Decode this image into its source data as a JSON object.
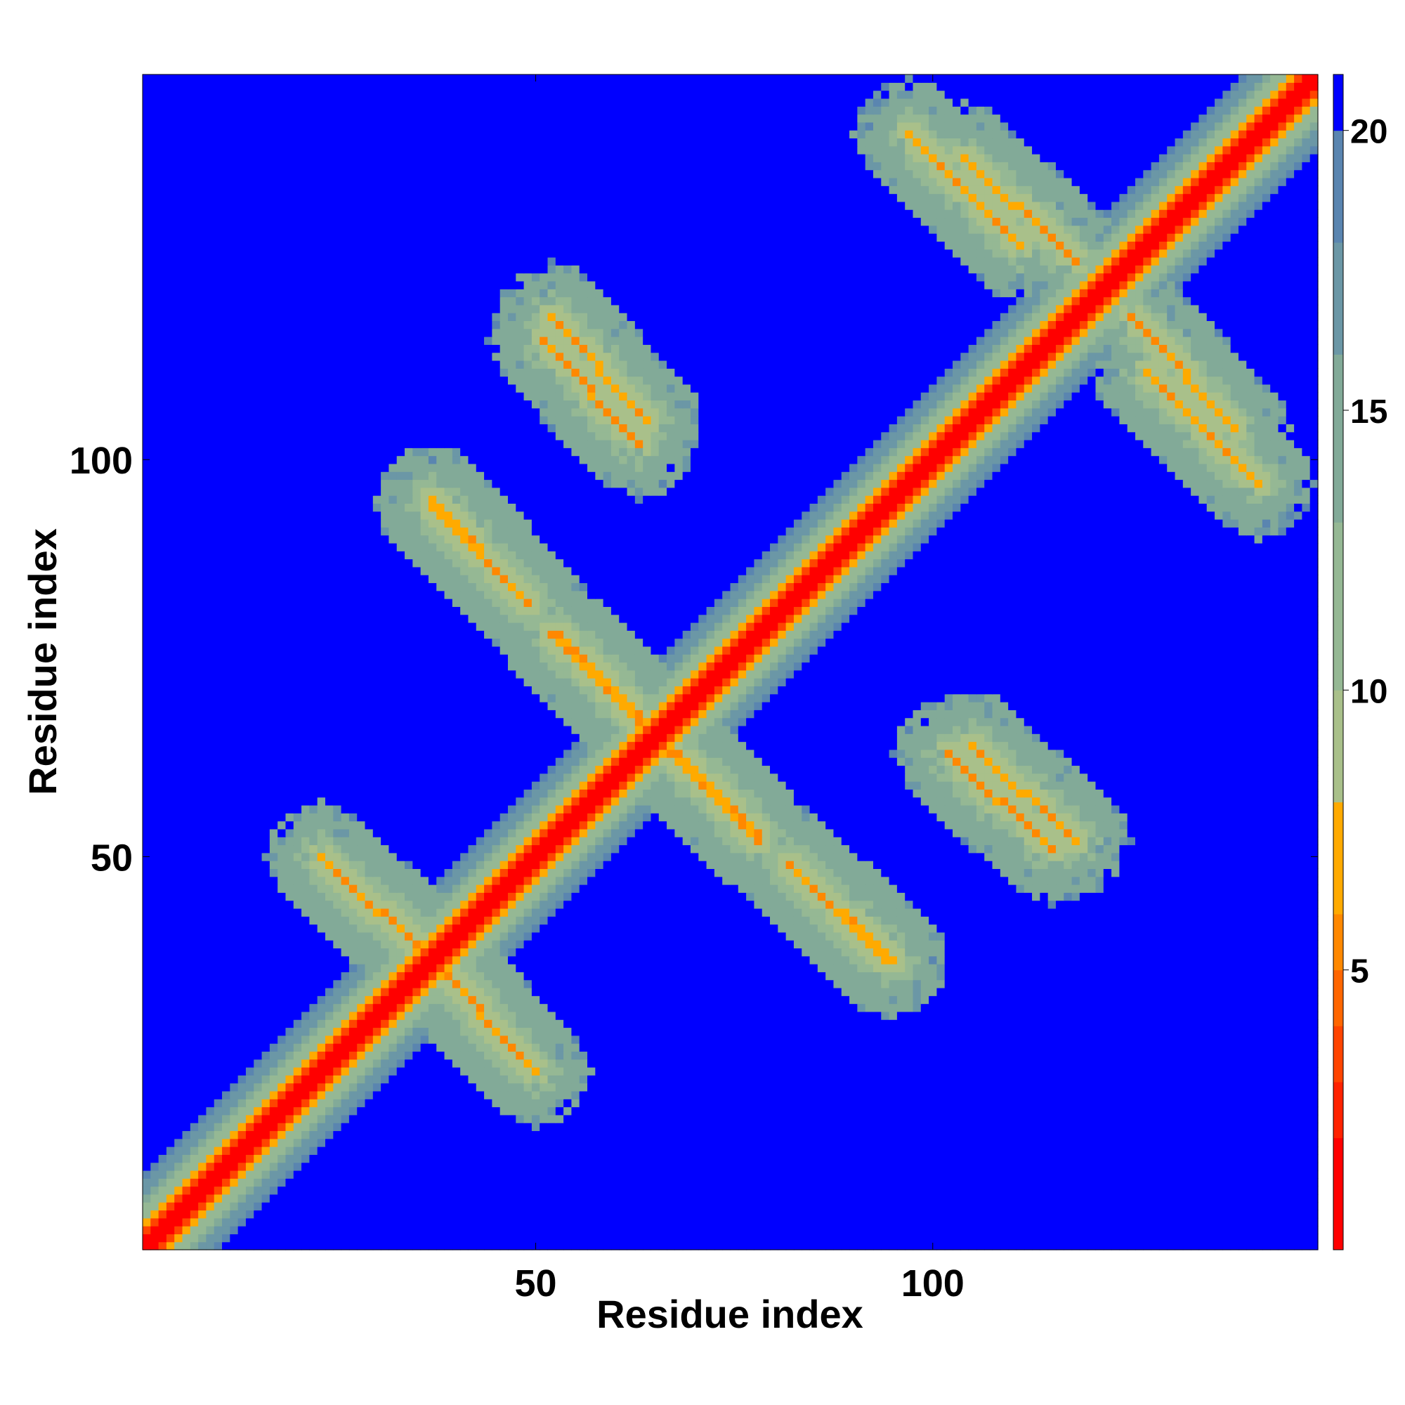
{
  "chart_data": {
    "type": "heatmap",
    "title": "",
    "xlabel": "Residue index",
    "ylabel": "Residue index",
    "xlim": [
      1,
      148
    ],
    "ylim": [
      1,
      148
    ],
    "x_ticks": [
      50,
      100
    ],
    "y_ticks": [
      50,
      100
    ],
    "x_tick_labels": [
      "50",
      "100"
    ],
    "y_tick_labels": [
      "50",
      "100"
    ],
    "colorbar": {
      "range": [
        0,
        21
      ],
      "ticks": [
        5,
        10,
        15,
        20
      ],
      "tick_labels": [
        "5",
        "10",
        "15",
        "20"
      ],
      "colors": [
        "#ff0000",
        "#ff2200",
        "#ff4400",
        "#ff6600",
        "#ff8800",
        "#ffaa00",
        "#a9c08a",
        "#95b894",
        "#82aa98",
        "#6b97a6",
        "#5a85b0",
        "#0000ff"
      ],
      "boundaries": [
        0,
        2,
        3,
        4,
        5,
        6,
        8,
        10,
        13,
        16,
        18,
        20,
        21
      ]
    },
    "grid": false,
    "description_of_pattern": "Symmetric residue contact/distance map of a repeat protein: strong main diagonal with off-diagonal antiparallel contact streaks forming a lattice of blue (distant) diamond-shaped regions.",
    "main_diagonal": {
      "from": 1,
      "to": 148,
      "value": 1
    },
    "anti_diagonal_contacts": [
      {
        "i_start": 23,
        "j_start": 50,
        "i_end": 38,
        "j_end": 36,
        "value": 6
      },
      {
        "i_start": 37,
        "j_start": 37,
        "i_end": 49,
        "j_end": 24,
        "value": 6
      },
      {
        "i_start": 37,
        "j_start": 95,
        "i_end": 49,
        "j_end": 82,
        "value": 6
      },
      {
        "i_start": 52,
        "j_start": 118,
        "i_end": 64,
        "j_end": 105,
        "value": 6
      },
      {
        "i_start": 52,
        "j_start": 78,
        "i_end": 63,
        "j_end": 67,
        "value": 6
      },
      {
        "i_start": 67,
        "j_start": 64,
        "i_end": 78,
        "j_end": 53,
        "value": 6
      },
      {
        "i_start": 82,
        "j_start": 49,
        "i_end": 94,
        "j_end": 37,
        "value": 6
      },
      {
        "i_start": 97,
        "j_start": 141,
        "i_end": 111,
        "j_end": 127,
        "value": 6
      },
      {
        "i_start": 102,
        "j_start": 63,
        "i_end": 115,
        "j_end": 51,
        "value": 6
      },
      {
        "i_start": 125,
        "j_start": 118,
        "i_end": 138,
        "j_end": 104,
        "value": 6
      }
    ],
    "distant_regions_value": 21,
    "background_contact_value": 13
  }
}
